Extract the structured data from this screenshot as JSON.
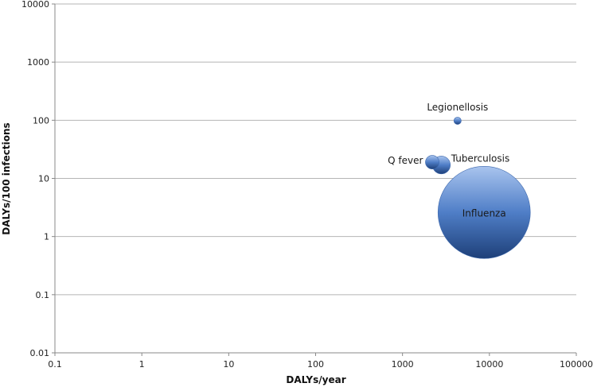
{
  "chart_data": {
    "type": "bubble",
    "xlabel": "DALYs/year",
    "ylabel": "DALYs/100 infections",
    "x_scale": "log",
    "y_scale": "log",
    "xlim": [
      0.1,
      100000
    ],
    "ylim": [
      0.01,
      10000
    ],
    "x_ticks": [
      "0.1",
      "1",
      "10",
      "100",
      "1000",
      "10000",
      "100000"
    ],
    "y_ticks": [
      "0.01",
      "0.1",
      "1",
      "10",
      "100",
      "1000",
      "10000"
    ],
    "grid": "horizontal",
    "points": [
      {
        "label": "Legionellosis",
        "x": 4300,
        "y": 98,
        "size": 2
      },
      {
        "label": "Q fever",
        "x": 2200,
        "y": 19,
        "size": 7
      },
      {
        "label": "Tuberculosis",
        "x": 2800,
        "y": 17,
        "size": 12
      },
      {
        "label": "Influenza",
        "x": 8700,
        "y": 2.6,
        "size": 320
      }
    ],
    "color": "#4a78c2"
  }
}
